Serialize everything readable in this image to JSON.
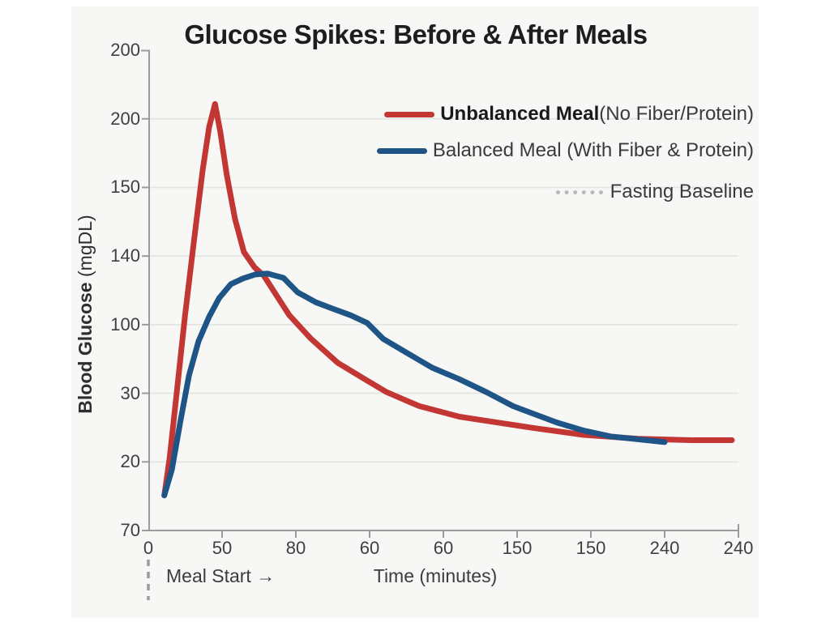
{
  "page": {
    "background": "#ffffff",
    "canvas_background": "#f7f7f5"
  },
  "chart_data": {
    "type": "line",
    "title": "Glucose Spikes: Before & After Meals",
    "xlabel": "Time (minutes)",
    "ylabel": "Blood Glucose (mgDL)",
    "ylabel_bold": "Blood Glucose",
    "ylabel_unit": "(mgDL)",
    "annotation_meal_start": "Meal Start →",
    "x_tick_labels": [
      "0",
      "50",
      "80",
      "60",
      "60",
      "150",
      "150",
      "240",
      "240"
    ],
    "y_tick_labels_top_to_bottom": [
      "200",
      "200",
      "150",
      "140",
      "100",
      "30",
      "20",
      "70"
    ],
    "grid": true,
    "gridlines": "horizontal-only",
    "legend_position": "top-right-inside",
    "colors": {
      "unbalanced_line": "#c23634",
      "balanced_line": "#1e5486",
      "fasting_dotted": "#b8b8b8",
      "axis": "#9b9b9b",
      "grid": "#e3e3e1",
      "meal_dash": "#9a9a9a"
    },
    "legend": [
      {
        "swatch": "solid-red",
        "bold": "Unbalanced Meal",
        "rest": " (No Fiber/Protein)"
      },
      {
        "swatch": "solid-blue",
        "bold": "",
        "rest": "Balanced Meal (With Fiber & Protein)"
      },
      {
        "swatch": "dotted-gray",
        "bold": "",
        "rest": "Fasting Baseline"
      }
    ],
    "series": [
      {
        "name": "Unbalanced Meal (No Fiber/Protein)",
        "color": "#c23634",
        "style": "solid",
        "points_norm_xy_topdown": [
          [
            0.027,
            0.927
          ],
          [
            0.036,
            0.85
          ],
          [
            0.048,
            0.715
          ],
          [
            0.062,
            0.555
          ],
          [
            0.078,
            0.39
          ],
          [
            0.092,
            0.25
          ],
          [
            0.103,
            0.16
          ],
          [
            0.113,
            0.112
          ],
          [
            0.122,
            0.17
          ],
          [
            0.133,
            0.26
          ],
          [
            0.147,
            0.352
          ],
          [
            0.162,
            0.42
          ],
          [
            0.18,
            0.452
          ],
          [
            0.196,
            0.47
          ],
          [
            0.218,
            0.512
          ],
          [
            0.239,
            0.552
          ],
          [
            0.275,
            0.6
          ],
          [
            0.321,
            0.651
          ],
          [
            0.367,
            0.685
          ],
          [
            0.404,
            0.712
          ],
          [
            0.459,
            0.741
          ],
          [
            0.527,
            0.763
          ],
          [
            0.596,
            0.776
          ],
          [
            0.655,
            0.787
          ],
          [
            0.738,
            0.801
          ],
          [
            0.83,
            0.809
          ],
          [
            0.92,
            0.812
          ],
          [
            0.989,
            0.812
          ]
        ]
      },
      {
        "name": "Balanced Meal (With Fiber & Protein)",
        "color": "#1e5486",
        "style": "solid",
        "points_norm_xy_topdown": [
          [
            0.027,
            0.927
          ],
          [
            0.04,
            0.873
          ],
          [
            0.054,
            0.775
          ],
          [
            0.069,
            0.677
          ],
          [
            0.085,
            0.606
          ],
          [
            0.103,
            0.555
          ],
          [
            0.12,
            0.516
          ],
          [
            0.14,
            0.487
          ],
          [
            0.161,
            0.475
          ],
          [
            0.181,
            0.467
          ],
          [
            0.202,
            0.465
          ],
          [
            0.229,
            0.474
          ],
          [
            0.253,
            0.504
          ],
          [
            0.284,
            0.525
          ],
          [
            0.312,
            0.538
          ],
          [
            0.343,
            0.552
          ],
          [
            0.371,
            0.568
          ],
          [
            0.398,
            0.601
          ],
          [
            0.435,
            0.628
          ],
          [
            0.481,
            0.661
          ],
          [
            0.527,
            0.685
          ],
          [
            0.573,
            0.712
          ],
          [
            0.618,
            0.741
          ],
          [
            0.655,
            0.758
          ],
          [
            0.692,
            0.775
          ],
          [
            0.738,
            0.792
          ],
          [
            0.783,
            0.804
          ],
          [
            0.875,
            0.816
          ]
        ]
      },
      {
        "name": "Fasting Baseline",
        "color": "#b8b8b8",
        "style": "dotted",
        "points_norm_xy_topdown": []
      }
    ]
  }
}
